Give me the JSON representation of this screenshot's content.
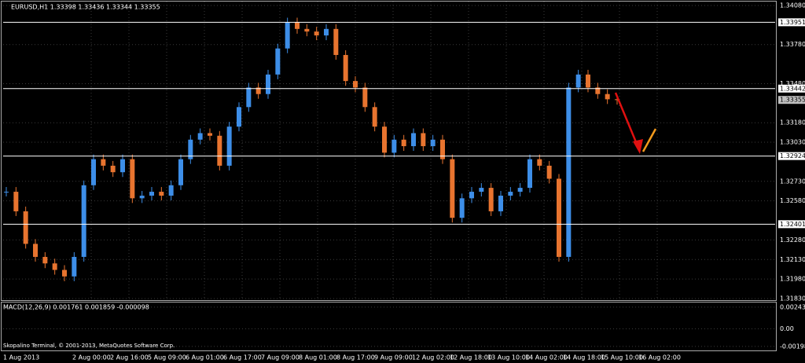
{
  "chart_data": {
    "type": "candlestick",
    "title": "EURUSD,H1  1.33398 1.33436 1.33344 1.33355",
    "footer": "Skopalino Terminal, © 2001-2013, MetaQuotes Software Corp.",
    "up_color": "#3d8ee8",
    "down_color": "#e8742f",
    "grid": true,
    "ylim": [
      1.31818,
      1.3411
    ],
    "yticks": [
      {
        "value": 1.3408,
        "label": "1.34080"
      },
      {
        "value": 1.3378,
        "label": "1.33780"
      },
      {
        "value": 1.3348,
        "label": "1.33480"
      },
      {
        "value": 1.3318,
        "label": "1.33180"
      },
      {
        "value": 1.3303,
        "label": "1.33030"
      },
      {
        "value": 1.3273,
        "label": "1.32730"
      },
      {
        "value": 1.3258,
        "label": "1.32580"
      },
      {
        "value": 1.3228,
        "label": "1.32280"
      },
      {
        "value": 1.3213,
        "label": "1.32130"
      },
      {
        "value": 1.3198,
        "label": "1.31980"
      },
      {
        "value": 1.3183,
        "label": "1.31830"
      }
    ],
    "levels": [
      {
        "value": 1.33951,
        "label": "1.33951"
      },
      {
        "value": 1.33442,
        "label": "1.33442"
      },
      {
        "value": 1.32924,
        "label": "1.32924"
      },
      {
        "value": 1.32401,
        "label": "1.32401"
      }
    ],
    "current_price": {
      "value": 1.33355,
      "label": "1.33355"
    },
    "x_labels": [
      "1 Aug 2013",
      "2 Aug 00:00",
      "2 Aug 16:00",
      "5 Aug 09:00",
      "6 Aug 01:00",
      "6 Aug 17:00",
      "7 Aug 09:00",
      "8 Aug 01:00",
      "8 Aug 17:00",
      "9 Aug 09:00",
      "12 Aug 02:00",
      "12 Aug 18:00",
      "13 Aug 10:00",
      "14 Aug 02:00",
      "14 Aug 18:00",
      "15 Aug 10:00",
      "16 Aug 02:00"
    ],
    "values": [
      1.3265,
      1.325,
      1.3225,
      1.3215,
      1.321,
      1.3205,
      1.32,
      1.3215,
      1.327,
      1.329,
      1.3285,
      1.328,
      1.329,
      1.326,
      1.3262,
      1.3265,
      1.3262,
      1.327,
      1.329,
      1.3305,
      1.331,
      1.3308,
      1.3285,
      1.3315,
      1.333,
      1.3345,
      1.334,
      1.3355,
      1.3375,
      1.3395,
      1.339,
      1.3388,
      1.3385,
      1.339,
      1.337,
      1.335,
      1.3345,
      1.333,
      1.3315,
      1.3295,
      1.3305,
      1.33,
      1.331,
      1.33,
      1.3305,
      1.329,
      1.3245,
      1.326,
      1.3265,
      1.3268,
      1.325,
      1.3262,
      1.3265,
      1.3268,
      1.329,
      1.3285,
      1.3275,
      1.3215,
      1.3345,
      1.3355,
      1.3345,
      1.334,
      1.3336,
      1.33355
    ],
    "macd": {
      "title": "MACD(12,26,9) 0.001761 0.001859 -0.000098",
      "ylim": [
        -0.00243,
        0.00295
      ],
      "yticks": [
        0.002432,
        {
          "value": 0,
          "label": "0.00"
        },
        -0.00198
      ]
    }
  }
}
